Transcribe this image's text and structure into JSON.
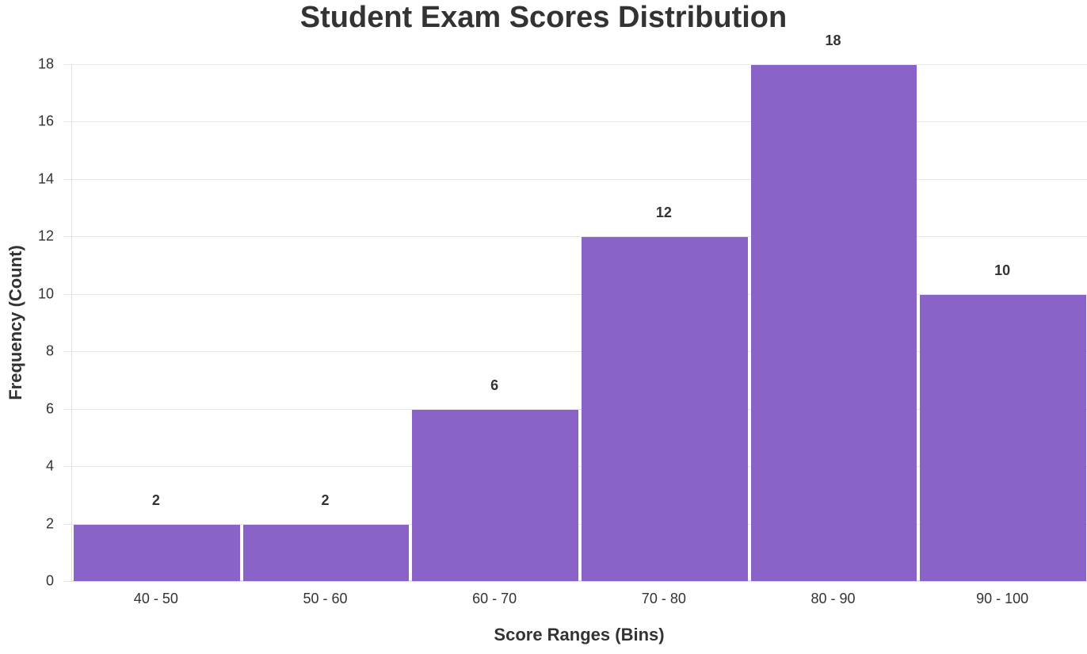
{
  "chart_data": {
    "type": "bar",
    "title": "Student Exam Scores Distribution",
    "xlabel": "Score Ranges (Bins)",
    "ylabel": "Frequency (Count)",
    "categories": [
      "40 - 50",
      "50 - 60",
      "60 - 70",
      "70 - 80",
      "80 - 90",
      "90 - 100"
    ],
    "values": [
      2,
      2,
      6,
      12,
      18,
      10
    ],
    "data_labels": [
      "2",
      "2",
      "6",
      "12",
      "18",
      "10"
    ],
    "ylim": [
      0,
      18
    ],
    "yticks": [
      0,
      2,
      4,
      6,
      8,
      10,
      12,
      14,
      16,
      18
    ],
    "grid": true,
    "legend": null,
    "bar_color": "#8a63c9"
  }
}
